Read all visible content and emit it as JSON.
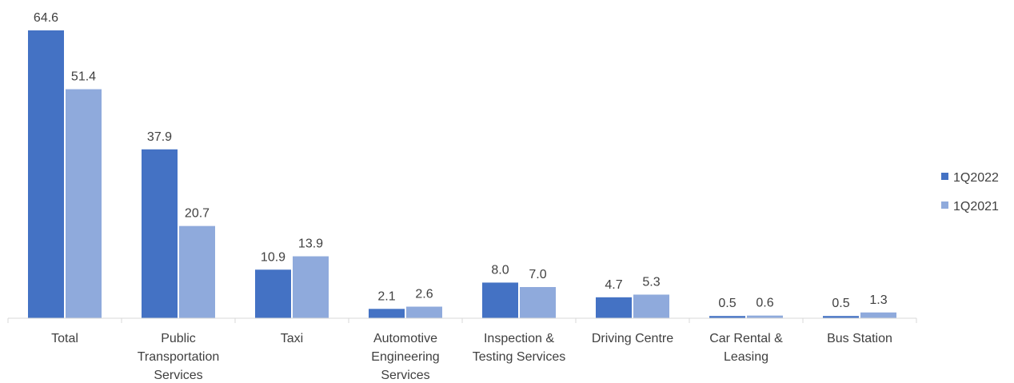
{
  "chart_data": {
    "type": "bar",
    "categories": [
      [
        "Total"
      ],
      [
        "Public",
        "Transportation",
        "Services"
      ],
      [
        "Taxi"
      ],
      [
        "Automotive",
        "Engineering",
        "Services"
      ],
      [
        "Inspection &",
        "Testing Services"
      ],
      [
        "Driving Centre"
      ],
      [
        "Car Rental &",
        "Leasing"
      ],
      [
        "Bus Station"
      ]
    ],
    "series": [
      {
        "name": "1Q2022",
        "color": "#4472C4",
        "values": [
          64.6,
          37.9,
          10.9,
          2.1,
          8.0,
          4.7,
          0.5,
          0.5
        ],
        "labels": [
          "64.6",
          "37.9",
          "10.9",
          "2.1",
          "8.0",
          "4.7",
          "0.5",
          "0.5"
        ]
      },
      {
        "name": "1Q2021",
        "color": "#8FAADC",
        "values": [
          51.4,
          20.7,
          13.9,
          2.6,
          7.0,
          5.3,
          0.6,
          1.3
        ],
        "labels": [
          "51.4",
          "20.7",
          "13.9",
          "2.6",
          "7.0",
          "5.3",
          "0.6",
          "1.3"
        ]
      }
    ],
    "ylim": [
      0,
      64.6
    ],
    "grid": false,
    "legend": "right"
  }
}
